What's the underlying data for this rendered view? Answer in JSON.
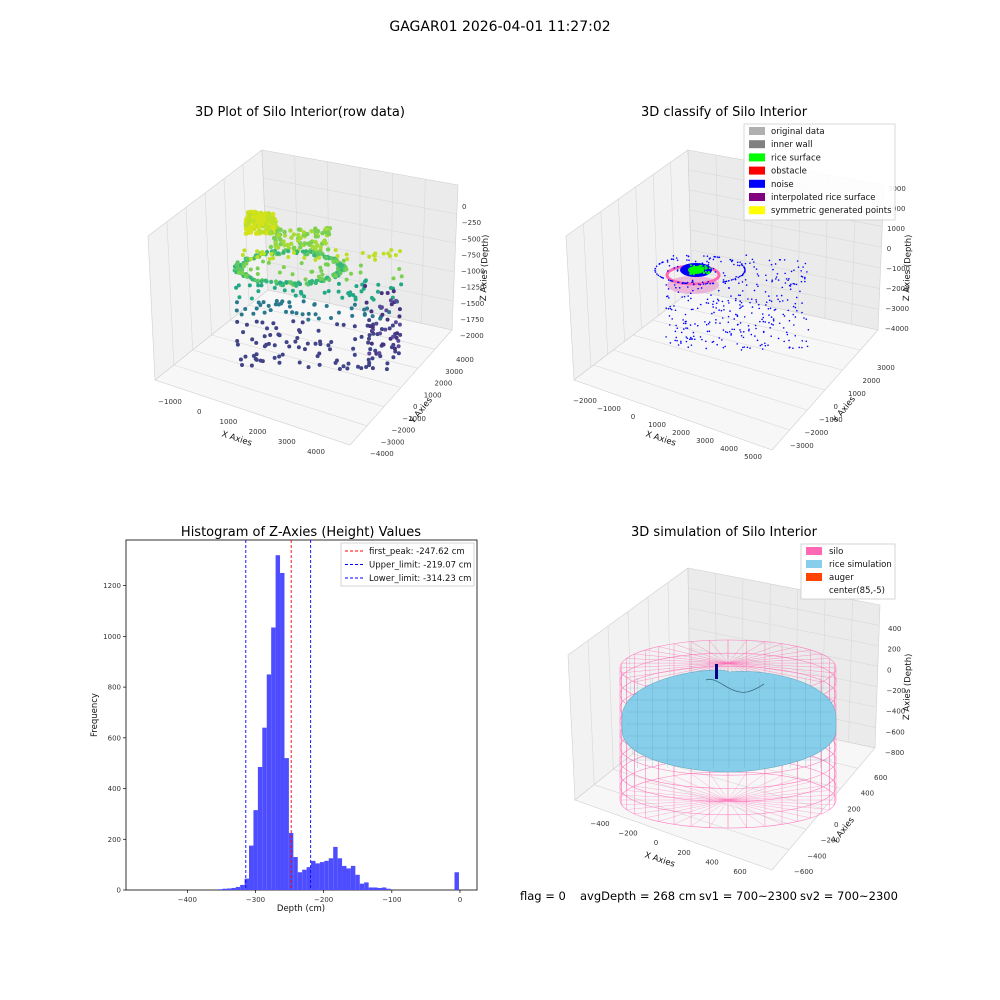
{
  "suptitle": "GAGAR01 2026-04-01 11:27:02",
  "footer": {
    "flag": "flag = 0",
    "avg_depth": "avgDepth = 268 cm",
    "sv1": "sv1 = 700~2300",
    "sv2": "sv2 = 700~2300"
  },
  "chart_data": [
    {
      "type": "scatter",
      "title": "3D Plot of Silo Interior(row data)",
      "xlabel": "X Axies",
      "ylabel": "Y Axies",
      "zlabel": "Z Axies (Depth)",
      "x_ticks": [
        "−1000",
        "0",
        "1000",
        "2000",
        "3000",
        "4000"
      ],
      "y_ticks": [
        "−4000",
        "−3000",
        "−2000",
        "−1000",
        "0",
        "1000",
        "2000",
        "3000",
        "4000"
      ],
      "z_ticks": [
        "−2000",
        "−1750",
        "−1500",
        "−1250",
        "−1000",
        "−750",
        "−500",
        "−250",
        "0"
      ],
      "xlim": [
        -1500,
        4500
      ],
      "ylim": [
        -4200,
        4200
      ],
      "zlim": [
        -2200,
        100
      ],
      "colormap": "viridis (by depth)"
    },
    {
      "type": "scatter",
      "title": "3D classify of Silo Interior",
      "xlabel": "X Axies",
      "ylabel": "Y Axies",
      "zlabel": "Z Axies (Depth)",
      "x_ticks": [
        "−2000",
        "−1000",
        "0",
        "1000",
        "2000",
        "3000",
        "4000",
        "5000"
      ],
      "y_ticks": [
        "−3000",
        "−2000",
        "−1000",
        "0",
        "1000",
        "2000",
        "3000"
      ],
      "z_ticks": [
        "−4000",
        "−3000",
        "−2000",
        "−1000",
        "0",
        "1000",
        "2000",
        "3000"
      ],
      "legend": [
        {
          "label": "original data",
          "color": "#b0b0b0"
        },
        {
          "label": "inner wall",
          "color": "#808080"
        },
        {
          "label": "rice surface",
          "color": "#00ff00"
        },
        {
          "label": "obstacle",
          "color": "#ff0000"
        },
        {
          "label": "noise",
          "color": "#0000ff"
        },
        {
          "label": "interpolated rice surface",
          "color": "#800080"
        },
        {
          "label": "symmetric generated points",
          "color": "#ffff00"
        }
      ]
    },
    {
      "type": "bar",
      "title": "Histogram of Z-Axies (Height) Values",
      "xlabel": "Depth (cm)",
      "ylabel": "Frequency",
      "xlim": [
        -490,
        25
      ],
      "ylim": [
        0,
        1380
      ],
      "x_ticks": [
        -400,
        -300,
        -200,
        -100,
        0
      ],
      "y_ticks": [
        0,
        200,
        400,
        600,
        800,
        1000,
        1200
      ],
      "bin_width": 6.5,
      "bar_color": "#4d4dff",
      "bins": [
        [
          -355,
          3
        ],
        [
          -348.5,
          5
        ],
        [
          -342,
          6
        ],
        [
          -335.5,
          8
        ],
        [
          -329,
          12
        ],
        [
          -322.5,
          20
        ],
        [
          -316,
          45
        ],
        [
          -309.5,
          175
        ],
        [
          -303,
          315
        ],
        [
          -296.5,
          485
        ],
        [
          -290,
          640
        ],
        [
          -283.5,
          850
        ],
        [
          -277,
          1035
        ],
        [
          -270.5,
          1320
        ],
        [
          -264,
          1250
        ],
        [
          -257.5,
          520
        ],
        [
          -251,
          225
        ],
        [
          -244.5,
          130
        ],
        [
          -238,
          70
        ],
        [
          -231.5,
          80
        ],
        [
          -225,
          90
        ],
        [
          -218.5,
          115
        ],
        [
          -212,
          105
        ],
        [
          -205.5,
          110
        ],
        [
          -199,
          115
        ],
        [
          -192.5,
          125
        ],
        [
          -186,
          170
        ],
        [
          -179.5,
          125
        ],
        [
          -173,
          95
        ],
        [
          -166.5,
          85
        ],
        [
          -160,
          95
        ],
        [
          -153.5,
          60
        ],
        [
          -147,
          25
        ],
        [
          -140.5,
          30
        ],
        [
          -134,
          10
        ],
        [
          -127.5,
          10
        ],
        [
          -121,
          8
        ],
        [
          -114.5,
          10
        ],
        [
          -108,
          5
        ],
        [
          -8,
          70
        ]
      ],
      "vlines": [
        {
          "x": -247.62,
          "color": "#ff0000",
          "label": "first_peak: -247.62 cm"
        },
        {
          "x": -219.07,
          "color": "#0000ff",
          "label": "Upper_limit: -219.07 cm"
        },
        {
          "x": -314.23,
          "color": "#0000ff",
          "label": "Lower_limit: -314.23 cm"
        }
      ]
    },
    {
      "type": "surface",
      "title": "3D simulation of Silo Interior",
      "xlabel": "X Axies",
      "ylabel": "Y Axies",
      "zlabel": "Z Axies (Depth)",
      "x_ticks": [
        "−400",
        "−200",
        "0",
        "200",
        "400",
        "600"
      ],
      "y_ticks": [
        "−600",
        "−400",
        "−200",
        "0",
        "200",
        "400",
        "600"
      ],
      "z_ticks": [
        "−800",
        "−600",
        "−400",
        "−200",
        "0",
        "200",
        "400"
      ],
      "legend": [
        {
          "label": "silo",
          "color": "#ff69b4"
        },
        {
          "label": "rice simulation",
          "color": "#87ceeb"
        },
        {
          "label": "auger",
          "color": "#ff4500"
        },
        {
          "label": "center(85,-5)",
          "color": "#ffffff"
        }
      ]
    }
  ]
}
